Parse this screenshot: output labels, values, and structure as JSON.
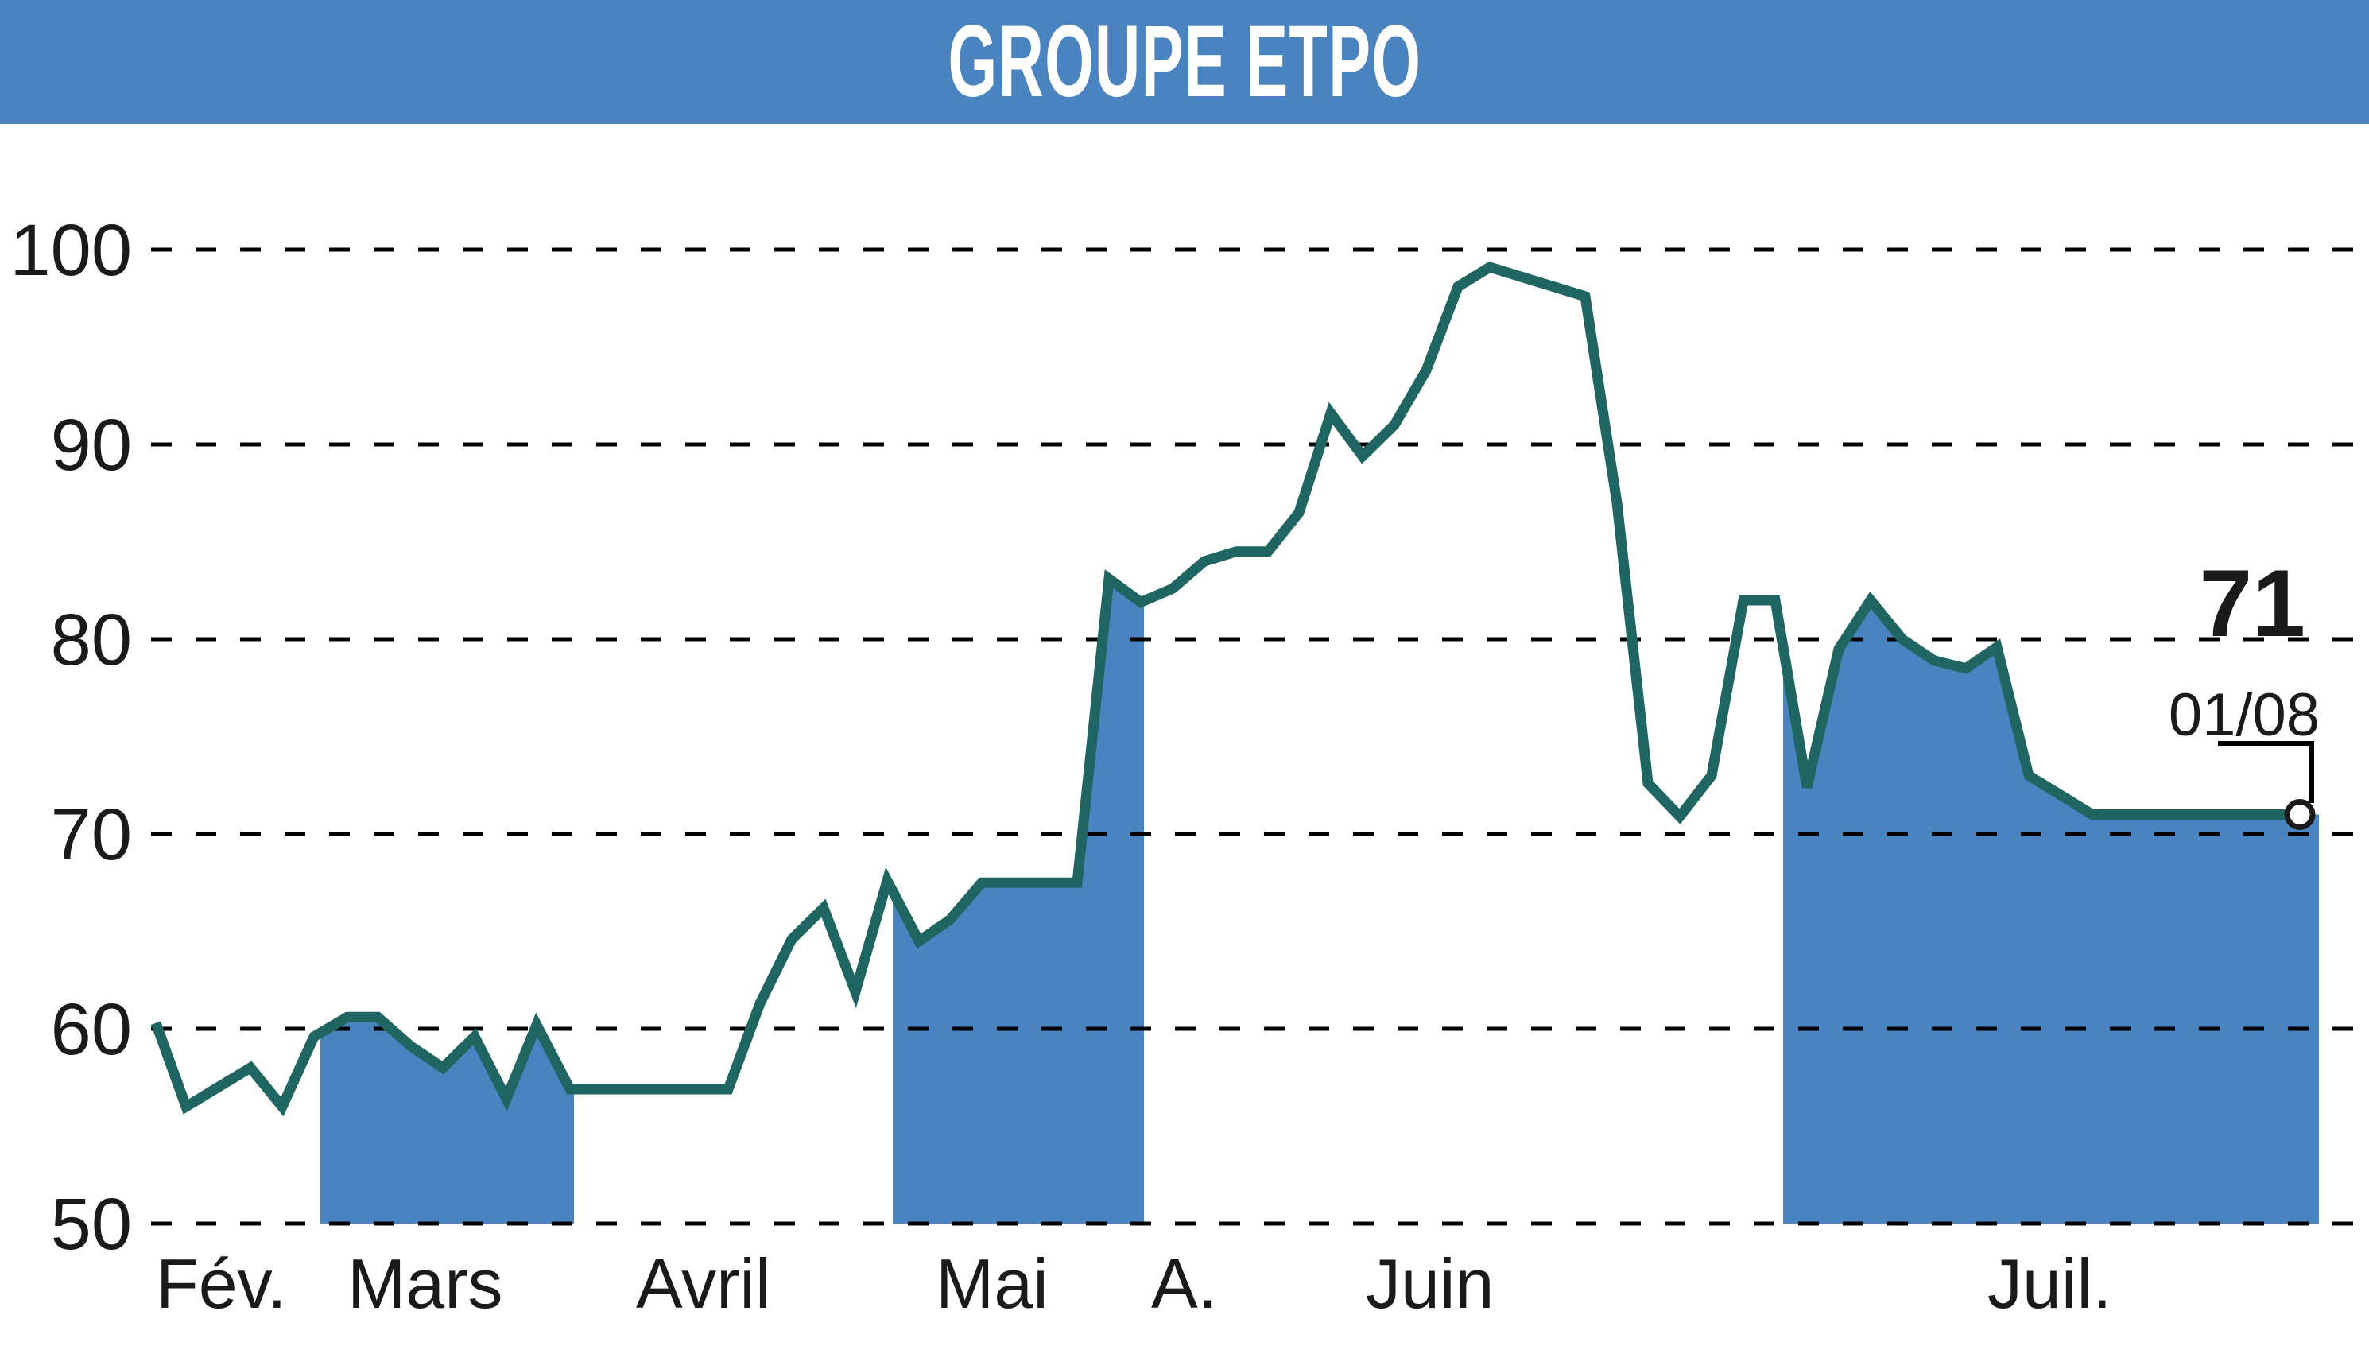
{
  "header": {
    "title": "GROUPE ETPO",
    "background": "#4a84c0"
  },
  "colors": {
    "line": "#1f6662",
    "fill": "#4a84c0",
    "grid": "#000000",
    "text": "#1a1a1a"
  },
  "last_point": {
    "value": "71",
    "date": "01/08"
  },
  "chart_data": {
    "type": "line",
    "title": "GROUPE ETPO",
    "xlabel": "",
    "ylabel": "",
    "ylim": [
      50,
      100
    ],
    "yticks": [
      100,
      90,
      80,
      70,
      60,
      50
    ],
    "grid": "horizontal dashed",
    "month_labels": [
      "Fév.",
      "Mars",
      "Avril",
      "Mai",
      "A.",
      "Juin",
      "Juil."
    ],
    "month_label_x": [
      196,
      437,
      800,
      1177,
      1448,
      1718,
      2500
    ],
    "shaded_month_bands_x": [
      [
        403,
        722
      ],
      [
        1123,
        1439
      ],
      [
        2243,
        2917
      ]
    ],
    "series": [
      {
        "name": "GROUPE ETPO",
        "x": [
          196,
          234,
          315,
          355,
          395,
          437,
          475,
          517,
          557,
          597,
          637,
          675,
          717,
          916,
          956,
          996,
          1036,
          1076,
          1116,
          1156,
          1195,
          1235,
          1355,
          1395,
          1435,
          1475,
          1515,
          1555,
          1595,
          1634,
          1674,
          1714,
          1754,
          1794,
          1834,
          1874,
          1994,
          2034,
          2073,
          2113,
          2153,
          2193,
          2233,
          2273,
          2313,
          2353,
          2393,
          2433,
          2473,
          2512,
          2552,
          2632,
          2893
        ],
        "values": [
          60.3,
          56.0,
          58.0,
          56.0,
          59.6,
          60.6,
          60.6,
          59.1,
          58.0,
          59.6,
          56.4,
          60.2,
          56.9,
          56.9,
          61.3,
          64.6,
          66.2,
          61.9,
          67.6,
          64.5,
          65.6,
          67.5,
          67.5,
          83.1,
          81.9,
          82.6,
          84.0,
          84.5,
          84.5,
          86.5,
          91.6,
          89.4,
          91.0,
          93.8,
          98.1,
          99.1,
          97.6,
          87.0,
          72.6,
          70.9,
          73.0,
          82.0,
          82.0,
          72.4,
          79.5,
          82.0,
          80.0,
          78.9,
          78.5,
          79.6,
          73.0,
          71.0,
          71.0
        ]
      }
    ]
  }
}
